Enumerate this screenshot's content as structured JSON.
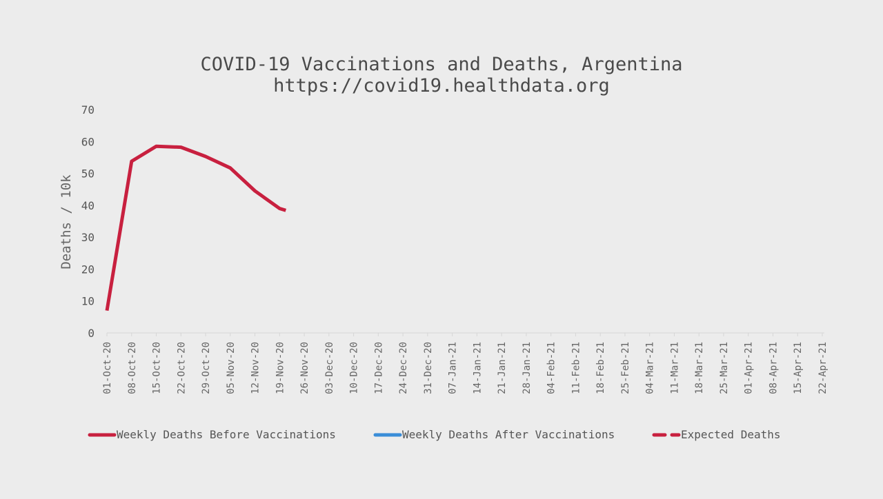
{
  "chart_data": {
    "type": "line",
    "title": "COVID-19 Vaccinations and Deaths, Argentina",
    "subtitle": "https://covid19.healthdata.org",
    "ylabel": "Deaths / 10k",
    "xlabel": "",
    "ylim": [
      0,
      70
    ],
    "y_ticks": [
      0,
      10,
      20,
      30,
      40,
      50,
      60,
      70
    ],
    "grid": false,
    "legend_position": "bottom",
    "categories": [
      "01-Oct-20",
      "08-Oct-20",
      "15-Oct-20",
      "22-Oct-20",
      "29-Oct-20",
      "05-Nov-20",
      "12-Nov-20",
      "19-Nov-20",
      "26-Nov-20",
      "03-Dec-20",
      "10-Dec-20",
      "17-Dec-20",
      "24-Dec-20",
      "31-Dec-20",
      "07-Jan-21",
      "14-Jan-21",
      "21-Jan-21",
      "28-Jan-21",
      "04-Feb-21",
      "11-Feb-21",
      "18-Feb-21",
      "25-Feb-21",
      "04-Mar-21",
      "11-Mar-21",
      "18-Mar-21",
      "25-Mar-21",
      "01-Apr-21",
      "08-Apr-21",
      "15-Apr-21",
      "22-Apr-21"
    ],
    "series": [
      {
        "name": "Weekly Deaths Before Vaccinations",
        "color": "#c8203f",
        "style": "solid",
        "points": [
          {
            "x": "01-Oct-20",
            "y": 7
          },
          {
            "x": "08-Oct-20",
            "y": 53.8
          },
          {
            "x": "15-Oct-20",
            "y": 58.5
          },
          {
            "x": "22-Oct-20",
            "y": 58.2
          },
          {
            "x": "29-Oct-20",
            "y": 55.3
          },
          {
            "x": "05-Nov-20",
            "y": 51.7
          },
          {
            "x": "12-Nov-20",
            "y": 44.5
          },
          {
            "x": "19-Nov-20",
            "y": 39.0
          },
          {
            "x": "26-Nov-20",
            "y": 36.6
          }
        ],
        "end_fraction": 0.25
      },
      {
        "name": "Weekly Deaths After Vaccinations",
        "color": "#3a8dd8",
        "style": "solid",
        "points": []
      },
      {
        "name": "Expected Deaths",
        "color": "#c8203f",
        "style": "dashed",
        "points": []
      }
    ]
  }
}
